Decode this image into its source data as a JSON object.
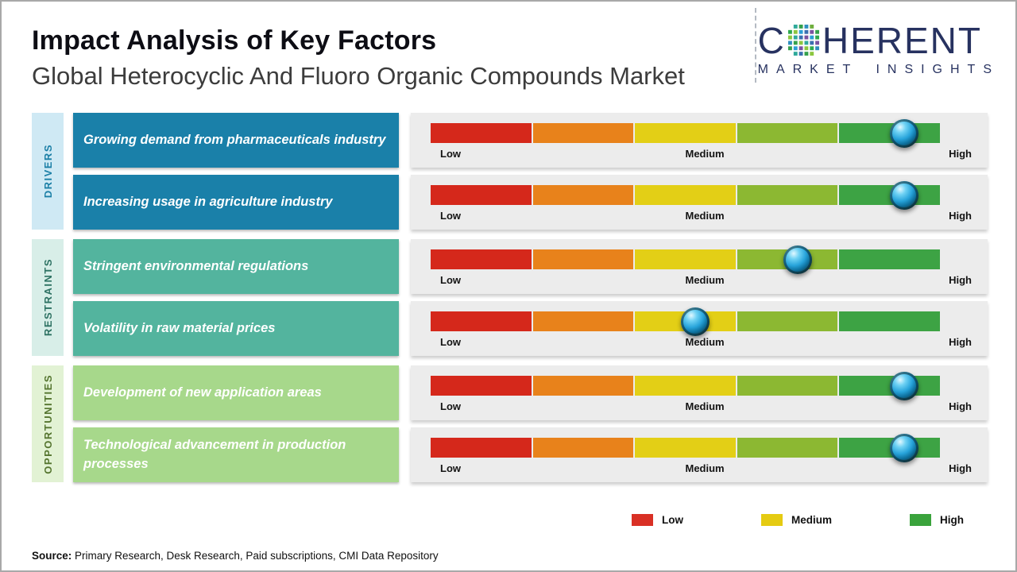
{
  "header": {
    "title": "Impact Analysis of Key Factors",
    "subtitle": "Global Heterocyclic And Fluoro Organic Compounds Market"
  },
  "logo": {
    "part1": "C",
    "part2": "HERENT",
    "tagline": "MARKET INSIGHTS"
  },
  "scale": {
    "low": "Low",
    "medium": "Medium",
    "high": "High"
  },
  "groups": [
    {
      "label": "DRIVERS",
      "factors": [
        {
          "text": "Growing demand from pharmaceuticals industry",
          "impact_pct": 93
        },
        {
          "text": "Increasing usage in agriculture industry",
          "impact_pct": 93
        }
      ]
    },
    {
      "label": "RESTRAINTS",
      "factors": [
        {
          "text": "Stringent environmental regulations",
          "impact_pct": 72
        },
        {
          "text": "Volatility in raw material prices",
          "impact_pct": 52
        }
      ]
    },
    {
      "label": "OPPORTUNITIES",
      "factors": [
        {
          "text": "Development of new application areas",
          "impact_pct": 93
        },
        {
          "text": "Technological advancement in production processes",
          "impact_pct": 93
        }
      ]
    }
  ],
  "legend": [
    {
      "label": "Low",
      "color": "#d93025"
    },
    {
      "label": "Medium",
      "color": "#e5cb12"
    },
    {
      "label": "High",
      "color": "#3aa33c"
    }
  ],
  "source": {
    "label": "Source:",
    "text": " Primary Research, Desk Research, Paid subscriptions, CMI Data Repository"
  },
  "colors": {
    "driver_box": "#1a80a9",
    "restraint_box": "#53b49e",
    "opportunity_box": "#a7d88b",
    "driver_label_bg": "#cfe9f4",
    "restraint_label_bg": "#d8eee8",
    "opportunity_label_bg": "#e2f2d4",
    "bar_segments": [
      "#d5281b",
      "#e8821b",
      "#e3cf16",
      "#8cb832",
      "#3da344"
    ]
  },
  "chart_data": {
    "type": "bar",
    "title": "Impact Analysis of Key Factors",
    "subtitle": "Global Heterocyclic And Fluoro Organic Compounds Market",
    "scale": [
      "Low",
      "Medium",
      "High"
    ],
    "xlim_pct": [
      0,
      100
    ],
    "series": [
      {
        "group": "DRIVERS",
        "factor": "Growing demand from pharmaceuticals industry",
        "impact_pct": 93,
        "impact_level": "High"
      },
      {
        "group": "DRIVERS",
        "factor": "Increasing usage in agriculture industry",
        "impact_pct": 93,
        "impact_level": "High"
      },
      {
        "group": "RESTRAINTS",
        "factor": "Stringent environmental regulations",
        "impact_pct": 72,
        "impact_level": "Medium-High"
      },
      {
        "group": "RESTRAINTS",
        "factor": "Volatility in raw material prices",
        "impact_pct": 52,
        "impact_level": "Medium"
      },
      {
        "group": "OPPORTUNITIES",
        "factor": "Development of new application areas",
        "impact_pct": 93,
        "impact_level": "High"
      },
      {
        "group": "OPPORTUNITIES",
        "factor": "Technological advancement in production processes",
        "impact_pct": 93,
        "impact_level": "High"
      }
    ],
    "legend_position": "bottom",
    "grid": false
  }
}
